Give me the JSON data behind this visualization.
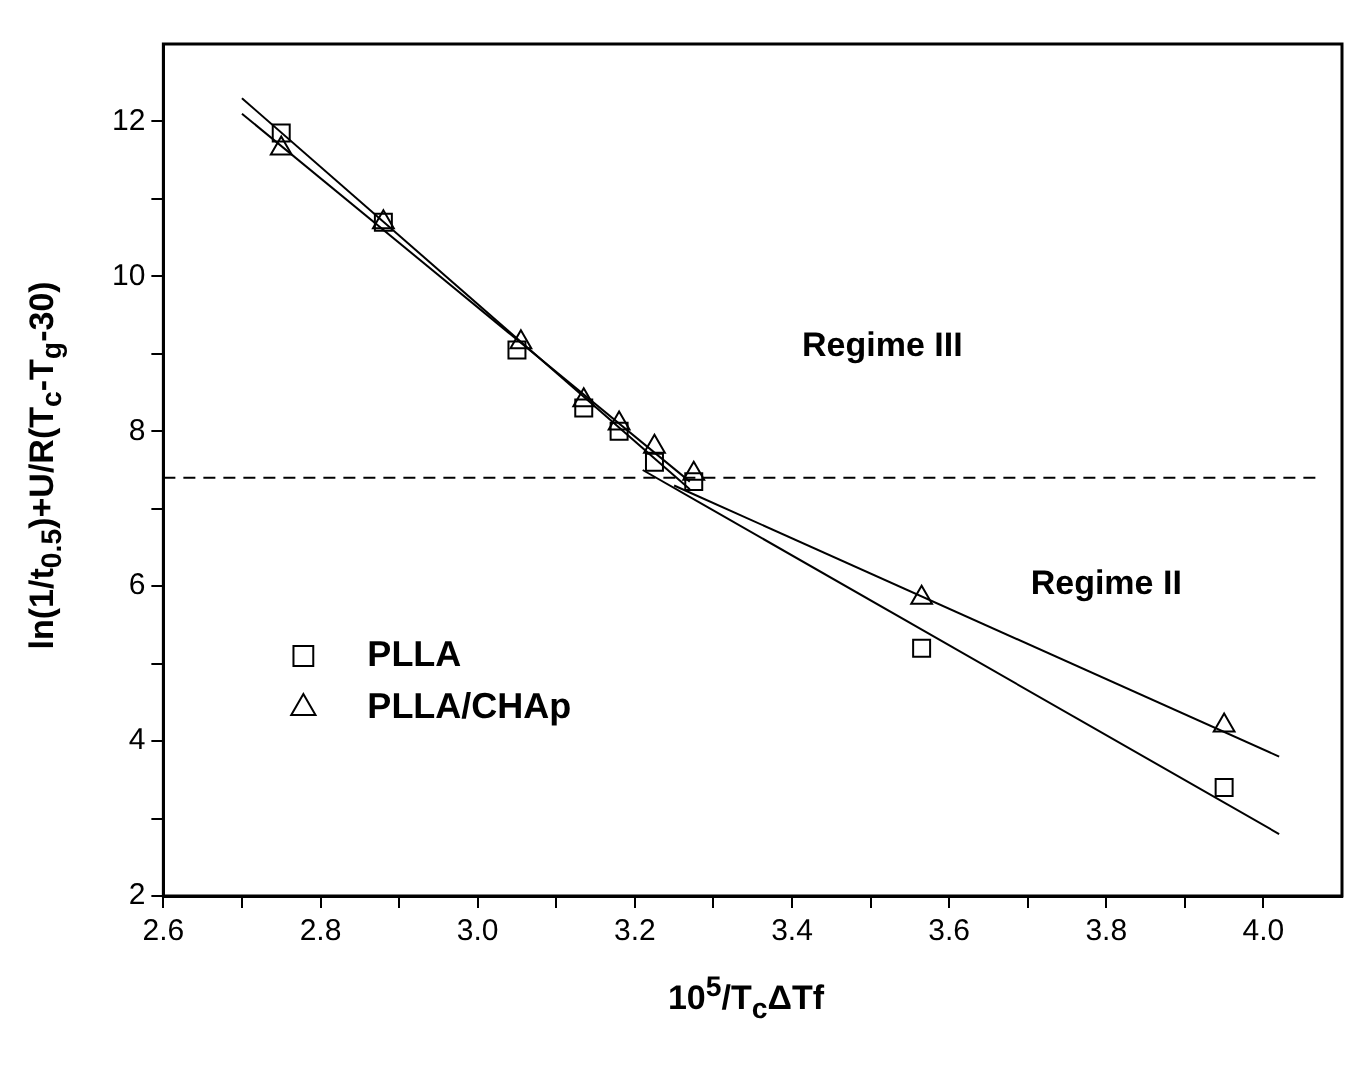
{
  "chart_data": {
    "type": "scatter",
    "xlabel": "10$^{5}$/T$_{c}$ΔTf",
    "ylabel": "ln(1/t$_{0.5}$)+U/R(T$_{c}$-T$_{g}$-30)",
    "series": [
      {
        "name": "PLLA",
        "color": "#000000",
        "marker": "square",
        "x": [
          2.75,
          2.88,
          3.05,
          3.135,
          3.18,
          3.225,
          3.275,
          3.565,
          3.95
        ],
        "values": [
          11.85,
          10.7,
          9.05,
          8.3,
          8.0,
          7.6,
          7.35,
          5.2,
          3.4
        ]
      },
      {
        "name": "PLLA/CHAp",
        "color": "#000000",
        "marker": "triangle",
        "x": [
          2.75,
          2.88,
          3.055,
          3.135,
          3.18,
          3.225,
          3.275,
          3.565,
          3.95
        ],
        "values": [
          11.65,
          10.7,
          9.15,
          8.4,
          8.1,
          7.8,
          7.45,
          5.85,
          4.2
        ]
      },
      {
        "type": "line",
        "color": "#000000",
        "marker": "none",
        "x": [
          2.7,
          3.27
        ],
        "values": [
          12.3,
          7.25
        ]
      },
      {
        "type": "line",
        "color": "#000000",
        "marker": "none",
        "x": [
          2.7,
          3.27
        ],
        "values": [
          12.1,
          7.35
        ]
      },
      {
        "type": "line",
        "color": "#000000",
        "marker": "none",
        "x": [
          3.21,
          4.02
        ],
        "values": [
          7.5,
          2.8
        ]
      },
      {
        "type": "line",
        "color": "#000000",
        "marker": "none",
        "x": [
          3.25,
          4.02
        ],
        "values": [
          7.3,
          3.8
        ]
      }
    ],
    "xlim": [
      2.6,
      4.1
    ],
    "ylim": [
      2,
      13
    ],
    "xticks": [
      2.6,
      {
        "value": 2.7,
        "label": null
      },
      2.8,
      {
        "value": 2.9,
        "label": null
      },
      {
        "value": 3.0,
        "label": "3.0"
      },
      {
        "value": 3.1,
        "label": null
      },
      3.2,
      {
        "value": 3.3,
        "label": null
      },
      3.4,
      {
        "value": 3.5,
        "label": null
      },
      3.6,
      {
        "value": 3.7,
        "label": null
      },
      3.8,
      {
        "value": 3.9,
        "label": null
      },
      {
        "value": 4.0,
        "label": "4.0"
      }
    ],
    "yticks": [
      2,
      {
        "value": 3,
        "label": null
      },
      4,
      {
        "value": 5,
        "label": null
      },
      6,
      {
        "value": 7,
        "label": null
      },
      8,
      {
        "value": 9,
        "label": null
      },
      10,
      {
        "value": 11,
        "label": null
      },
      12
    ],
    "ref_lines": [
      {
        "axis": "y",
        "value": 7.4,
        "line_style": "dashed",
        "color": "#000000"
      }
    ],
    "annotations": [
      "Regime III",
      "Regime II"
    ],
    "legend": "bottom left",
    "grid": false
  }
}
